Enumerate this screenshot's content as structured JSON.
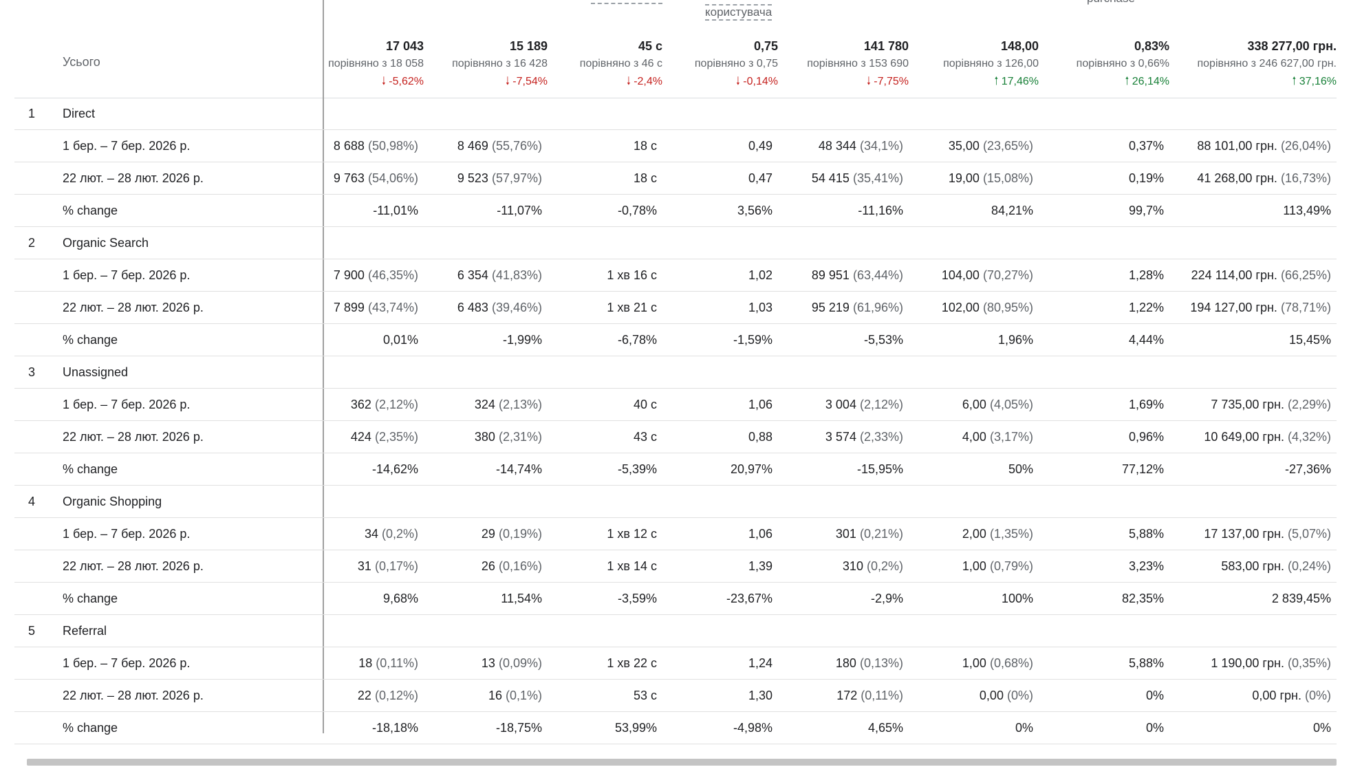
{
  "header": {
    "partial_label": "користувача",
    "partial_label2": "purchase"
  },
  "totals": {
    "label": "Усього",
    "metrics": [
      {
        "value": "17 043",
        "compare": "порівняно з 18 058",
        "change": "-5,62%",
        "dir": "down"
      },
      {
        "value": "15 189",
        "compare": "порівняно з 16 428",
        "change": "-7,54%",
        "dir": "down"
      },
      {
        "value": "45 с",
        "compare": "порівняно з 46 с",
        "change": "-2,4%",
        "dir": "down"
      },
      {
        "value": "0,75",
        "compare": "порівняно з 0,75",
        "change": "-0,14%",
        "dir": "down"
      },
      {
        "value": "141 780",
        "compare": "порівняно з 153 690",
        "change": "-7,75%",
        "dir": "down"
      },
      {
        "value": "148,00",
        "compare": "порівняно з 126,00",
        "change": "17,46%",
        "dir": "up"
      },
      {
        "value": "0,83%",
        "compare": "порівняно з 0,66%",
        "change": "26,14%",
        "dir": "up"
      },
      {
        "value": "338 277,00 грн.",
        "compare": "порівняно з 246 627,00 грн.",
        "change": "37,16%",
        "dir": "up"
      }
    ]
  },
  "groups": [
    {
      "rank": "1",
      "name": "Direct",
      "rows": [
        {
          "label": "1 бер. – 7 бер. 2026 р.",
          "cells": [
            [
              "8 688",
              "(50,98%)"
            ],
            [
              "8 469",
              "(55,76%)"
            ],
            [
              "18 с",
              ""
            ],
            [
              "0,49",
              ""
            ],
            [
              "48 344",
              "(34,1%)"
            ],
            [
              "35,00",
              "(23,65%)"
            ],
            [
              "0,37%",
              ""
            ],
            [
              "88 101,00 грн.",
              "(26,04%)"
            ]
          ]
        },
        {
          "label": "22 лют. – 28 лют. 2026 р.",
          "cells": [
            [
              "9 763",
              "(54,06%)"
            ],
            [
              "9 523",
              "(57,97%)"
            ],
            [
              "18 с",
              ""
            ],
            [
              "0,47",
              ""
            ],
            [
              "54 415",
              "(35,41%)"
            ],
            [
              "19,00",
              "(15,08%)"
            ],
            [
              "0,19%",
              ""
            ],
            [
              "41 268,00 грн.",
              "(16,73%)"
            ]
          ]
        },
        {
          "label": "% change",
          "cells": [
            [
              "-11,01%",
              ""
            ],
            [
              "-11,07%",
              ""
            ],
            [
              "-0,78%",
              ""
            ],
            [
              "3,56%",
              ""
            ],
            [
              "-11,16%",
              ""
            ],
            [
              "84,21%",
              ""
            ],
            [
              "99,7%",
              ""
            ],
            [
              "113,49%",
              ""
            ]
          ]
        }
      ]
    },
    {
      "rank": "2",
      "name": "Organic Search",
      "rows": [
        {
          "label": "1 бер. – 7 бер. 2026 р.",
          "cells": [
            [
              "7 900",
              "(46,35%)"
            ],
            [
              "6 354",
              "(41,83%)"
            ],
            [
              "1 хв 16 с",
              ""
            ],
            [
              "1,02",
              ""
            ],
            [
              "89 951",
              "(63,44%)"
            ],
            [
              "104,00",
              "(70,27%)"
            ],
            [
              "1,28%",
              ""
            ],
            [
              "224 114,00 грн.",
              "(66,25%)"
            ]
          ]
        },
        {
          "label": "22 лют. – 28 лют. 2026 р.",
          "cells": [
            [
              "7 899",
              "(43,74%)"
            ],
            [
              "6 483",
              "(39,46%)"
            ],
            [
              "1 хв 21 с",
              ""
            ],
            [
              "1,03",
              ""
            ],
            [
              "95 219",
              "(61,96%)"
            ],
            [
              "102,00",
              "(80,95%)"
            ],
            [
              "1,22%",
              ""
            ],
            [
              "194 127,00 грн.",
              "(78,71%)"
            ]
          ]
        },
        {
          "label": "% change",
          "cells": [
            [
              "0,01%",
              ""
            ],
            [
              "-1,99%",
              ""
            ],
            [
              "-6,78%",
              ""
            ],
            [
              "-1,59%",
              ""
            ],
            [
              "-5,53%",
              ""
            ],
            [
              "1,96%",
              ""
            ],
            [
              "4,44%",
              ""
            ],
            [
              "15,45%",
              ""
            ]
          ]
        }
      ]
    },
    {
      "rank": "3",
      "name": "Unassigned",
      "rows": [
        {
          "label": "1 бер. – 7 бер. 2026 р.",
          "cells": [
            [
              "362",
              "(2,12%)"
            ],
            [
              "324",
              "(2,13%)"
            ],
            [
              "40 с",
              ""
            ],
            [
              "1,06",
              ""
            ],
            [
              "3 004",
              "(2,12%)"
            ],
            [
              "6,00",
              "(4,05%)"
            ],
            [
              "1,69%",
              ""
            ],
            [
              "7 735,00 грн.",
              "(2,29%)"
            ]
          ]
        },
        {
          "label": "22 лют. – 28 лют. 2026 р.",
          "cells": [
            [
              "424",
              "(2,35%)"
            ],
            [
              "380",
              "(2,31%)"
            ],
            [
              "43 с",
              ""
            ],
            [
              "0,88",
              ""
            ],
            [
              "3 574",
              "(2,33%)"
            ],
            [
              "4,00",
              "(3,17%)"
            ],
            [
              "0,96%",
              ""
            ],
            [
              "10 649,00 грн.",
              "(4,32%)"
            ]
          ]
        },
        {
          "label": "% change",
          "cells": [
            [
              "-14,62%",
              ""
            ],
            [
              "-14,74%",
              ""
            ],
            [
              "-5,39%",
              ""
            ],
            [
              "20,97%",
              ""
            ],
            [
              "-15,95%",
              ""
            ],
            [
              "50%",
              ""
            ],
            [
              "77,12%",
              ""
            ],
            [
              "-27,36%",
              ""
            ]
          ]
        }
      ]
    },
    {
      "rank": "4",
      "name": "Organic Shopping",
      "rows": [
        {
          "label": "1 бер. – 7 бер. 2026 р.",
          "cells": [
            [
              "34",
              "(0,2%)"
            ],
            [
              "29",
              "(0,19%)"
            ],
            [
              "1 хв 12 с",
              ""
            ],
            [
              "1,06",
              ""
            ],
            [
              "301",
              "(0,21%)"
            ],
            [
              "2,00",
              "(1,35%)"
            ],
            [
              "5,88%",
              ""
            ],
            [
              "17 137,00 грн.",
              "(5,07%)"
            ]
          ]
        },
        {
          "label": "22 лют. – 28 лют. 2026 р.",
          "cells": [
            [
              "31",
              "(0,17%)"
            ],
            [
              "26",
              "(0,16%)"
            ],
            [
              "1 хв 14 с",
              ""
            ],
            [
              "1,39",
              ""
            ],
            [
              "310",
              "(0,2%)"
            ],
            [
              "1,00",
              "(0,79%)"
            ],
            [
              "3,23%",
              ""
            ],
            [
              "583,00 грн.",
              "(0,24%)"
            ]
          ]
        },
        {
          "label": "% change",
          "cells": [
            [
              "9,68%",
              ""
            ],
            [
              "11,54%",
              ""
            ],
            [
              "-3,59%",
              ""
            ],
            [
              "-23,67%",
              ""
            ],
            [
              "-2,9%",
              ""
            ],
            [
              "100%",
              ""
            ],
            [
              "82,35%",
              ""
            ],
            [
              "2 839,45%",
              ""
            ]
          ]
        }
      ]
    },
    {
      "rank": "5",
      "name": "Referral",
      "rows": [
        {
          "label": "1 бер. – 7 бер. 2026 р.",
          "cells": [
            [
              "18",
              "(0,11%)"
            ],
            [
              "13",
              "(0,09%)"
            ],
            [
              "1 хв 22 с",
              ""
            ],
            [
              "1,24",
              ""
            ],
            [
              "180",
              "(0,13%)"
            ],
            [
              "1,00",
              "(0,68%)"
            ],
            [
              "5,88%",
              ""
            ],
            [
              "1 190,00 грн.",
              "(0,35%)"
            ]
          ]
        },
        {
          "label": "22 лют. – 28 лют. 2026 р.",
          "cells": [
            [
              "22",
              "(0,12%)"
            ],
            [
              "16",
              "(0,1%)"
            ],
            [
              "53 с",
              ""
            ],
            [
              "1,30",
              ""
            ],
            [
              "172",
              "(0,11%)"
            ],
            [
              "0,00",
              "(0%)"
            ],
            [
              "0%",
              ""
            ],
            [
              "0,00 грн.",
              "(0%)"
            ]
          ]
        },
        {
          "label": "% change",
          "cells": [
            [
              "-18,18%",
              ""
            ],
            [
              "-18,75%",
              ""
            ],
            [
              "53,99%",
              ""
            ],
            [
              "-4,98%",
              ""
            ],
            [
              "4,65%",
              ""
            ],
            [
              "0%",
              ""
            ],
            [
              "0%",
              ""
            ],
            [
              "0%",
              ""
            ]
          ]
        }
      ]
    }
  ]
}
